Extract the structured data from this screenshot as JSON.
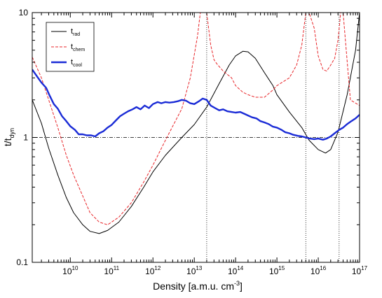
{
  "chart_data": {
    "type": "line",
    "xlabel": "Density [a.m.u. cm",
    "xlabel_sup": "-3",
    "xlabel_tail": "]",
    "ylabel_main": "t/t",
    "ylabel_sub": "dyn",
    "x_scale": "log",
    "y_scale": "log",
    "xlim": [
      1200000000.0,
      1e+17
    ],
    "ylim": [
      0.1,
      10
    ],
    "x_ticks": [
      {
        "value": 10000000000.0,
        "base": "10",
        "exp": "10"
      },
      {
        "value": 100000000000.0,
        "base": "10",
        "exp": "11"
      },
      {
        "value": 1000000000000.0,
        "base": "10",
        "exp": "12"
      },
      {
        "value": 10000000000000.0,
        "base": "10",
        "exp": "13"
      },
      {
        "value": 100000000000000.0,
        "base": "10",
        "exp": "14"
      },
      {
        "value": 1000000000000000.0,
        "base": "10",
        "exp": "15"
      },
      {
        "value": 1e+16,
        "base": "10",
        "exp": "16"
      },
      {
        "value": 1e+17,
        "base": "10",
        "exp": "17"
      }
    ],
    "y_ticks": [
      {
        "value": 0.1,
        "label": "0.1"
      },
      {
        "value": 1,
        "label": "1"
      },
      {
        "value": 10,
        "label": "10"
      }
    ],
    "reference_lines": {
      "horizontal": [
        {
          "y": 1,
          "style": "dash-dot"
        }
      ],
      "vertical": [
        {
          "x": 20000000000000.0,
          "style": "dotted"
        },
        {
          "x": 5000000000000000.0,
          "style": "dotted"
        },
        {
          "x": 3.2e+16,
          "style": "dotted"
        }
      ]
    },
    "legend": {
      "position": "top-left"
    },
    "grid": false,
    "series": [
      {
        "name": "t",
        "name_sub": "rad",
        "color": "#000000",
        "style": "solid",
        "width": 1,
        "x": [
          1200000000.0,
          2000000000.0,
          3000000000.0,
          5000000000.0,
          8000000000.0,
          12000000000.0,
          20000000000.0,
          30000000000.0,
          50000000000.0,
          80000000000.0,
          150000000000.0,
          300000000000.0,
          600000000000.0,
          1000000000000.0,
          2000000000000.0,
          5000000000000.0,
          10000000000000.0,
          20000000000000.0,
          40000000000000.0,
          70000000000000.0,
          100000000000000.0,
          150000000000000.0,
          200000000000000.0,
          300000000000000.0,
          500000000000000.0,
          800000000000000.0,
          1000000000000000.0,
          2000000000000000.0,
          4000000000000000.0,
          6000000000000000.0,
          1e+16,
          1.5e+16,
          2e+16,
          3e+16,
          5e+16,
          8e+16,
          1e+17
        ],
        "y": [
          2.0,
          1.3,
          0.82,
          0.5,
          0.33,
          0.25,
          0.2,
          0.177,
          0.17,
          0.18,
          0.21,
          0.28,
          0.4,
          0.53,
          0.72,
          1.0,
          1.27,
          1.75,
          2.7,
          3.8,
          4.5,
          4.9,
          4.85,
          4.3,
          3.3,
          2.6,
          2.2,
          1.6,
          1.2,
          0.95,
          0.8,
          0.75,
          0.8,
          1.1,
          2.2,
          5.0,
          10.0
        ]
      },
      {
        "name": "t",
        "name_sub": "chem",
        "color": "#e8262a",
        "style": "dashed",
        "width": 1,
        "x": [
          1200000000.0,
          2000000000.0,
          3000000000.0,
          5000000000.0,
          8000000000.0,
          12000000000.0,
          20000000000.0,
          30000000000.0,
          50000000000.0,
          80000000000.0,
          150000000000.0,
          300000000000.0,
          600000000000.0,
          1000000000000.0,
          2000000000000.0,
          5000000000000.0,
          8000000000000.0,
          12000000000000.0,
          14000000000000.0,
          16000000000000.0,
          20000000000000.0,
          25000000000000.0,
          30000000000000.0,
          35000000000000.0,
          50000000000000.0,
          80000000000000.0,
          100000000000000.0,
          150000000000000.0,
          200000000000000.0,
          300000000000000.0,
          500000000000000.0,
          800000000000000.0,
          1000000000000000.0,
          2000000000000000.0,
          3000000000000000.0,
          4000000000000000.0,
          5000000000000000.0,
          6000000000000000.0,
          8000000000000000.0,
          1e+16,
          1.3e+16,
          1.6e+16,
          2e+16,
          2.5e+16,
          3e+16,
          3.5e+16,
          4e+16,
          6e+16,
          1e+17
        ],
        "y": [
          4.4,
          3.0,
          2.0,
          1.2,
          0.72,
          0.5,
          0.34,
          0.25,
          0.21,
          0.2,
          0.23,
          0.3,
          0.44,
          0.6,
          0.95,
          1.7,
          3.0,
          6.5,
          10.0,
          10.0,
          10.0,
          5.5,
          4.2,
          3.9,
          3.4,
          3.0,
          2.6,
          2.3,
          2.2,
          2.1,
          2.1,
          2.4,
          2.6,
          3.0,
          3.8,
          5.5,
          10.0,
          10.0,
          7.5,
          4.5,
          3.5,
          3.4,
          3.8,
          4.3,
          6.0,
          10.0,
          10.0,
          2.0,
          1.8
        ]
      },
      {
        "name": "t",
        "name_sub": "cool",
        "color": "#1a2bd6",
        "style": "solid",
        "width": 2.4,
        "x": [
          1200000000.0,
          1600000000.0,
          2000000000.0,
          2600000000.0,
          3200000000.0,
          4000000000.0,
          5000000000.0,
          6300000000.0,
          8000000000.0,
          10000000000.0,
          13000000000.0,
          16000000000.0,
          20000000000.0,
          25000000000.0,
          32000000000.0,
          40000000000.0,
          50000000000.0,
          63000000000.0,
          80000000000.0,
          100000000000.0,
          130000000000.0,
          160000000000.0,
          200000000000.0,
          250000000000.0,
          320000000000.0,
          400000000000.0,
          500000000000.0,
          630000000000.0,
          800000000000.0,
          1000000000000.0,
          1300000000000.0,
          1600000000000.0,
          2000000000000.0,
          2500000000000.0,
          3200000000000.0,
          4000000000000.0,
          5000000000000.0,
          6300000000000.0,
          8000000000000.0,
          10000000000000.0,
          13000000000000.0,
          16000000000000.0,
          20000000000000.0,
          25000000000000.0,
          32000000000000.0,
          40000000000000.0,
          50000000000000.0,
          63000000000000.0,
          80000000000000.0,
          100000000000000.0,
          130000000000000.0,
          160000000000000.0,
          200000000000000.0,
          250000000000000.0,
          320000000000000.0,
          400000000000000.0,
          500000000000000.0,
          630000000000000.0,
          800000000000000.0,
          1000000000000000.0,
          1300000000000000.0,
          1600000000000000.0,
          2000000000000000.0,
          2500000000000000.0,
          3200000000000000.0,
          4000000000000000.0,
          5000000000000000.0,
          6300000000000000.0,
          8000000000000000.0,
          1e+16,
          1.3e+16,
          1.6e+16,
          2e+16,
          2.5e+16,
          3.2e+16,
          4e+16,
          5e+16,
          6.3e+16,
          8e+16,
          1e+17
        ],
        "y": [
          3.5,
          3.05,
          2.75,
          2.5,
          2.15,
          1.85,
          1.7,
          1.48,
          1.35,
          1.23,
          1.15,
          1.06,
          1.06,
          1.04,
          1.04,
          1.02,
          1.08,
          1.12,
          1.2,
          1.26,
          1.38,
          1.48,
          1.55,
          1.62,
          1.68,
          1.75,
          1.68,
          1.8,
          1.72,
          1.85,
          1.92,
          1.88,
          1.92,
          1.9,
          1.92,
          1.95,
          2.0,
          1.97,
          1.88,
          1.85,
          1.95,
          2.05,
          2.0,
          1.8,
          1.72,
          1.65,
          1.68,
          1.62,
          1.6,
          1.58,
          1.6,
          1.55,
          1.5,
          1.45,
          1.42,
          1.35,
          1.32,
          1.28,
          1.22,
          1.2,
          1.15,
          1.1,
          1.08,
          1.05,
          1.03,
          1.02,
          1.0,
          0.98,
          0.97,
          0.98,
          0.96,
          0.98,
          1.02,
          1.08,
          1.15,
          1.2,
          1.28,
          1.35,
          1.42,
          1.52
        ]
      }
    ]
  }
}
